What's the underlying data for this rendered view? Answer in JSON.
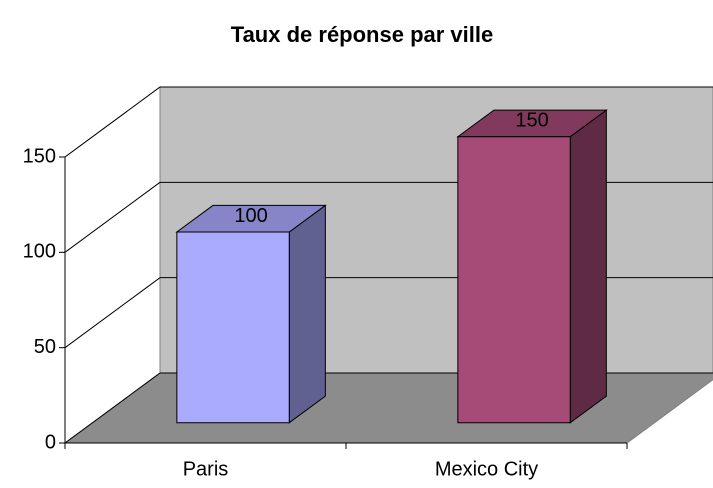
{
  "chart_data": {
    "type": "bar3d",
    "title": "Taux de réponse par ville",
    "categories": [
      "Paris",
      "Mexico City"
    ],
    "values": [
      100,
      150
    ],
    "colors": [
      "#aaaaff",
      "#a64a78"
    ],
    "ylim": [
      0,
      150
    ],
    "yticks": [
      0,
      50,
      100,
      150
    ],
    "grid": true
  }
}
